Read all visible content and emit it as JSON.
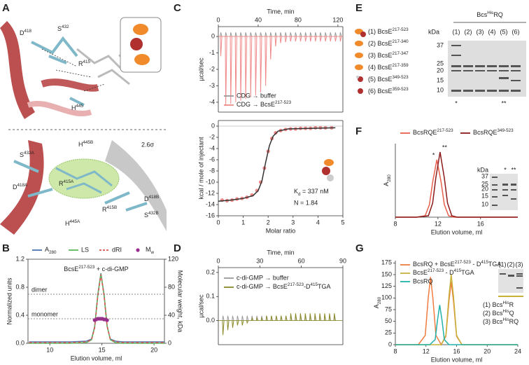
{
  "structure": {
    "label": "A",
    "top_labels": [
      [
        {
          "t": "D"
        },
        {
          "sup": "418"
        }
      ],
      [
        {
          "t": "S"
        },
        {
          "sup": "432"
        }
      ],
      [
        {
          "t": "R"
        },
        {
          "sup": "415"
        }
      ],
      [
        {
          "t": "H"
        },
        {
          "sup": "445"
        }
      ]
    ],
    "bottom_labels": [
      [
        {
          "t": "S"
        },
        {
          "sup": "432A"
        }
      ],
      [
        {
          "t": "H"
        },
        {
          "sup": "445B"
        }
      ],
      "2.6σ",
      [
        {
          "t": "D"
        },
        {
          "sup": "418A"
        }
      ],
      [
        {
          "t": "R"
        },
        {
          "sup": "415A"
        }
      ],
      [
        {
          "t": "D"
        },
        {
          "sup": "418B"
        }
      ],
      [
        {
          "t": "R"
        },
        {
          "sup": "415B"
        }
      ],
      [
        {
          "t": "H"
        },
        {
          "sup": "445A"
        }
      ],
      [
        {
          "t": "S"
        },
        {
          "sup": "432B"
        }
      ]
    ]
  },
  "gel": {
    "label": "E",
    "constructs": [
      [
        {
          "t": "(1) BcsE"
        },
        {
          "sup": "217-523"
        }
      ],
      [
        {
          "t": "(2) BcsE"
        },
        {
          "sup": "217-340"
        }
      ],
      [
        {
          "t": "(3) BcsE"
        },
        {
          "sup": "217-347"
        }
      ],
      [
        {
          "t": "(4) BcsE"
        },
        {
          "sup": "217-359"
        }
      ],
      [
        {
          "t": "(5) BcsE"
        },
        {
          "sup": "349-523"
        }
      ],
      [
        {
          "t": "(6) BcsE"
        },
        {
          "sup": "359-523"
        }
      ]
    ],
    "header": [
      {
        "t": "Bcs"
      },
      {
        "sup": "His"
      },
      {
        "t": "RQ"
      }
    ],
    "lanes": [
      "(1)",
      "(2)",
      "(3)",
      "(4)",
      "(5)",
      "(6)"
    ],
    "unit": "kDa",
    "markers": [
      37,
      25,
      20,
      15,
      10
    ],
    "marks": [
      "*",
      "**"
    ]
  },
  "chart_data": [
    {
      "type": "line",
      "label": "B",
      "title": [
        {
          "t": "BcsE"
        },
        {
          "sup": "217-523"
        },
        {
          "t": " + c-di-GMP"
        }
      ],
      "xlabel": "Elution volume, ml",
      "ylabel": "Normalized units",
      "y2label": "Molecular weight, kDa",
      "xlim": [
        7.9,
        21
      ],
      "xticks": [
        10,
        15,
        20
      ],
      "ylim": [
        0,
        1.2
      ],
      "yticks": [
        {
          "value": 0,
          "label": "0.0"
        },
        {
          "value": 0.4,
          "label": "0.4"
        },
        {
          "value": 0.8,
          "label": "0.8"
        },
        {
          "value": 1.2,
          "label": "1.2"
        }
      ],
      "y2lim": [
        0,
        120
      ],
      "y2ticks": [
        0,
        40,
        80,
        120
      ],
      "reference_lines": [
        {
          "label": "dimer",
          "value": 70
        },
        {
          "label": "monomer",
          "value": 35
        }
      ],
      "series": [
        {
          "name": [
            {
              "t": "A"
            },
            {
              "sub": "280"
            }
          ],
          "color": "#4c72b0",
          "style": "solid",
          "x": [
            8,
            12,
            13.5,
            14,
            14.3,
            14.6,
            14.9,
            15.2,
            15.5,
            15.8,
            16.3,
            17,
            21
          ],
          "values": [
            0.02,
            0.02,
            0.03,
            0.06,
            0.24,
            0.69,
            1.0,
            0.69,
            0.24,
            0.06,
            0.03,
            0.02,
            0.02
          ]
        },
        {
          "name": "LS",
          "color": "#5cb85c",
          "style": "solid",
          "x": [
            8,
            12,
            13.5,
            14,
            14.3,
            14.6,
            14.9,
            15.2,
            15.5,
            15.8,
            16.3,
            17,
            21
          ],
          "values": [
            0.0,
            0.0,
            0.01,
            0.05,
            0.23,
            0.68,
            0.99,
            0.7,
            0.25,
            0.05,
            0.01,
            0.0,
            0.0
          ]
        },
        {
          "name": "dRI",
          "color": "#d9534f",
          "style": "dashed",
          "x": [
            8,
            12,
            13.5,
            14,
            14.3,
            14.6,
            14.9,
            15.2,
            15.5,
            15.8,
            16.3,
            17,
            21
          ],
          "values": [
            0.01,
            0.01,
            0.02,
            0.05,
            0.22,
            0.67,
            0.98,
            0.68,
            0.24,
            0.06,
            0.02,
            0.01,
            0.01
          ]
        },
        {
          "name": [
            {
              "t": "M"
            },
            {
              "sub": "w"
            }
          ],
          "color": "#9b2d8e",
          "style": "points",
          "axis": "y2",
          "x": [
            14.3,
            14.45,
            14.6,
            14.75,
            14.9,
            15.05,
            15.2,
            15.35,
            15.5
          ],
          "values": [
            33,
            34,
            35,
            35,
            35,
            35,
            34,
            34,
            33
          ]
        }
      ]
    },
    {
      "type": "itc_raw",
      "label": "C",
      "xlabel": "Time, min",
      "ylabel": "µcal/sec",
      "xlim": [
        0,
        125
      ],
      "xticks": [
        0,
        40,
        80,
        120
      ],
      "ylim": [
        -4.6,
        0.6
      ],
      "yticks": [
        0,
        -1,
        -2,
        -3,
        -4
      ],
      "x": [
        2,
        7,
        12,
        17,
        22,
        27,
        32,
        37,
        42,
        47,
        52,
        57,
        62,
        67,
        72,
        77,
        82,
        87,
        92,
        97,
        102,
        107,
        112,
        117,
        122
      ],
      "series": [
        {
          "name": "CDG → buffer",
          "color": "#9a9a9a",
          "values": [
            0.25,
            0.25,
            0.25,
            0.25,
            0.25,
            0.25,
            0.25,
            0.25,
            0.25,
            0.25,
            0.25,
            0.25,
            0.25,
            0.25,
            0.25,
            0.25,
            0.25,
            0.25,
            0.25,
            0.25,
            0.25,
            0.25,
            0.25,
            0.25,
            0.25
          ]
        },
        {
          "name": [
            {
              "t": "CDG → BcsE"
            },
            {
              "sup": "217-523"
            }
          ],
          "color": "#f08a8a",
          "values": [
            -1.2,
            -4.2,
            -4.1,
            -4.0,
            -3.9,
            -3.8,
            -3.7,
            -3.6,
            -3.4,
            -3.0,
            -1.4,
            -0.6,
            -0.4,
            -0.35,
            -0.3,
            -0.3,
            -0.3,
            -0.3,
            -0.3,
            -0.3,
            -0.3,
            -0.3,
            -0.3,
            -0.3,
            -0.3
          ]
        }
      ]
    },
    {
      "type": "isotherm",
      "xlabel": "Molar ratio",
      "ylabel": "kcal / mole of injectant",
      "xlim": [
        0,
        5
      ],
      "xticks": [
        0,
        1,
        2,
        3,
        4,
        5
      ],
      "ylim": [
        -16,
        1
      ],
      "yticks": [
        0,
        -2,
        -4,
        -6,
        -8,
        -10,
        -12,
        -14,
        -16
      ],
      "annotations": [
        [
          {
            "t": "K"
          },
          {
            "sub": "d"
          },
          {
            "t": " = 337 nM"
          }
        ],
        "N = 1.84"
      ],
      "series": [
        {
          "style": "points",
          "color": "#f08a8a",
          "x": [
            0.15,
            0.35,
            0.55,
            0.75,
            0.95,
            1.15,
            1.35,
            1.55,
            1.7,
            1.85,
            2.0,
            2.15,
            2.3,
            2.5,
            2.7,
            2.9,
            3.1,
            3.3,
            3.5,
            3.7,
            3.9,
            4.1,
            4.3,
            4.55
          ],
          "values": [
            -13.2,
            -13.3,
            -13.2,
            -13.0,
            -12.9,
            -12.7,
            -12.3,
            -11.5,
            -10,
            -7.5,
            -4.5,
            -2.2,
            -1.2,
            -0.8,
            -0.6,
            -0.5,
            -0.5,
            -0.4,
            -0.4,
            -0.4,
            -0.3,
            -0.3,
            -0.3,
            -0.3
          ]
        },
        {
          "style": "solid",
          "color": "#333333",
          "x": [
            0,
            0.5,
            1,
            1.4,
            1.6,
            1.75,
            1.9,
            2.05,
            2.2,
            2.4,
            2.8,
            4.7
          ],
          "values": [
            -13.4,
            -13.2,
            -12.9,
            -12.4,
            -11.5,
            -9.8,
            -6.5,
            -3.5,
            -1.8,
            -0.9,
            -0.5,
            -0.3
          ]
        }
      ]
    },
    {
      "type": "itc_raw",
      "label": "D",
      "xlabel": "Time, min",
      "ylabel": "µcal/sec",
      "xlim": [
        0,
        90
      ],
      "xticks": [
        0,
        30,
        60,
        90
      ],
      "ylim": [
        -0.1,
        0.22
      ],
      "yticks": [
        {
          "value": 0,
          "label": "0.0"
        },
        {
          "value": 0.1,
          "label": "0.1"
        },
        {
          "value": 0.2,
          "label": "0.2"
        }
      ],
      "x": [
        3,
        6.5,
        10,
        13.5,
        17,
        20.5,
        24,
        27.5,
        31,
        34.5,
        38,
        41.5,
        45,
        48.5,
        52,
        55.5,
        59,
        62.5,
        66,
        69.5,
        73,
        76.5,
        80,
        83.5
      ],
      "series": [
        {
          "name": "c-di-GMP → buffer",
          "color": "#9a9a9a",
          "values": [
            0.02,
            0.02,
            0.02,
            0.02,
            0.02,
            0.02,
            0.02,
            0.02,
            0.02,
            0.02,
            0.02,
            0.02,
            0.02,
            0.02,
            0.02,
            0.02,
            0.02,
            0.02,
            0.02,
            0.02,
            0.02,
            0.02,
            0.02,
            0.02
          ]
        },
        {
          "name": [
            {
              "t": "c-di-GMP → BcsE"
            },
            {
              "sup": "217-523"
            },
            {
              "t": "-D"
            },
            {
              "sup": "415"
            },
            {
              "t": "TGA"
            }
          ],
          "color": "#8a8a2a",
          "values": [
            -0.06,
            -0.04,
            -0.03,
            -0.02,
            -0.02,
            -0.01,
            0.01,
            0.01,
            0.01,
            0.02,
            0.02,
            0.02,
            0.02,
            0.02,
            0.03,
            0.03,
            0.03,
            0.03,
            0.03,
            0.03,
            0.03,
            0.03,
            0.03,
            0.03
          ]
        }
      ]
    },
    {
      "type": "line",
      "label": "F",
      "xlabel": "Elution volume, ml",
      "ylabel": [
        {
          "t": "A"
        },
        {
          "sub": "280"
        }
      ],
      "xlim": [
        8,
        19.5
      ],
      "xticks": [
        8,
        12,
        16
      ],
      "ylim": [
        0,
        1.05
      ],
      "peak_marks": [
        "*",
        "**"
      ],
      "inset": {
        "unit": "kDa",
        "markers": [
          37,
          25,
          20,
          15,
          10
        ],
        "lanes": [
          "*",
          "**"
        ]
      },
      "series": [
        {
          "name": [
            {
              "t": "BcsRQE"
            },
            {
              "sup": "217-523"
            }
          ],
          "color": "#e8604c",
          "style": "solid",
          "x": [
            8,
            10,
            10.8,
            11.2,
            11.5,
            11.9,
            12.3,
            12.6,
            13,
            13.5,
            15,
            19.5
          ],
          "values": [
            0,
            0,
            0.02,
            0.18,
            0.5,
            0.82,
            0.5,
            0.18,
            0.02,
            0,
            0,
            0
          ]
        },
        {
          "name": [
            {
              "t": "BcsRQE"
            },
            {
              "sup": "349-523"
            }
          ],
          "color": "#8b1a1a",
          "style": "solid",
          "x": [
            8,
            10,
            11.1,
            11.5,
            11.8,
            12.2,
            12.6,
            12.9,
            13.3,
            13.8,
            15,
            19.5
          ],
          "values": [
            0,
            0,
            0.02,
            0.2,
            0.56,
            0.93,
            0.56,
            0.2,
            0.02,
            0,
            0,
            0
          ]
        }
      ]
    },
    {
      "type": "line",
      "label": "G",
      "xlabel": "Elution volume, ml",
      "ylabel": [
        {
          "t": "A"
        },
        {
          "sub": "280"
        }
      ],
      "xlim": [
        8,
        24
      ],
      "xticks": [
        8,
        12,
        16,
        20,
        24
      ],
      "ylim": [
        0,
        180
      ],
      "yticks": [
        0,
        25,
        50,
        75,
        100,
        125,
        150,
        175
      ],
      "inset": {
        "lanes": [
          "(1)",
          "(2)",
          "(3)"
        ],
        "key": [
          [
            {
              "t": "(1) Bcs"
            },
            {
              "sup": "His"
            },
            {
              "t": "R"
            }
          ],
          [
            {
              "t": "(2) Bcs"
            },
            {
              "sup": "His"
            },
            {
              "t": "Q"
            }
          ],
          [
            {
              "t": "(3) Bcs"
            },
            {
              "sup": "His"
            },
            {
              "t": "RQ"
            }
          ]
        ]
      },
      "series": [
        {
          "name": [
            {
              "t": "BcsRQ + BcsE"
            },
            {
              "sup": "217-523"
            },
            {
              "t": " - D"
            },
            {
              "sup": "415"
            },
            {
              "t": "TGA"
            }
          ],
          "color": "#f07b3f",
          "style": "solid",
          "x": [
            8,
            11,
            11.9,
            12.3,
            12.6,
            12.9,
            13.3,
            14,
            14.6,
            15,
            15.3,
            15.6,
            16,
            16.7,
            20,
            24
          ],
          "values": [
            0,
            0,
            20,
            100,
            145,
            100,
            20,
            0,
            18,
            93,
            135,
            93,
            18,
            0,
            0,
            0
          ]
        },
        {
          "name": [
            {
              "t": "BcsE"
            },
            {
              "sup": "217-523"
            },
            {
              "t": " - D"
            },
            {
              "sup": "415"
            },
            {
              "t": "TGA"
            }
          ],
          "color": "#c8b23a",
          "style": "solid",
          "x": [
            8,
            14,
            14.6,
            15,
            15.3,
            15.6,
            16,
            16.7,
            24
          ],
          "values": [
            0,
            0,
            20,
            104,
            150,
            104,
            20,
            0,
            0
          ]
        },
        {
          "name": "BcsRQ",
          "color": "#20b2aa",
          "style": "solid",
          "x": [
            8,
            12.5,
            13.2,
            13.5,
            13.8,
            14.1,
            14.4,
            15,
            24
          ],
          "values": [
            0,
            0,
            11,
            52,
            85,
            52,
            11,
            0,
            0
          ]
        }
      ]
    }
  ]
}
